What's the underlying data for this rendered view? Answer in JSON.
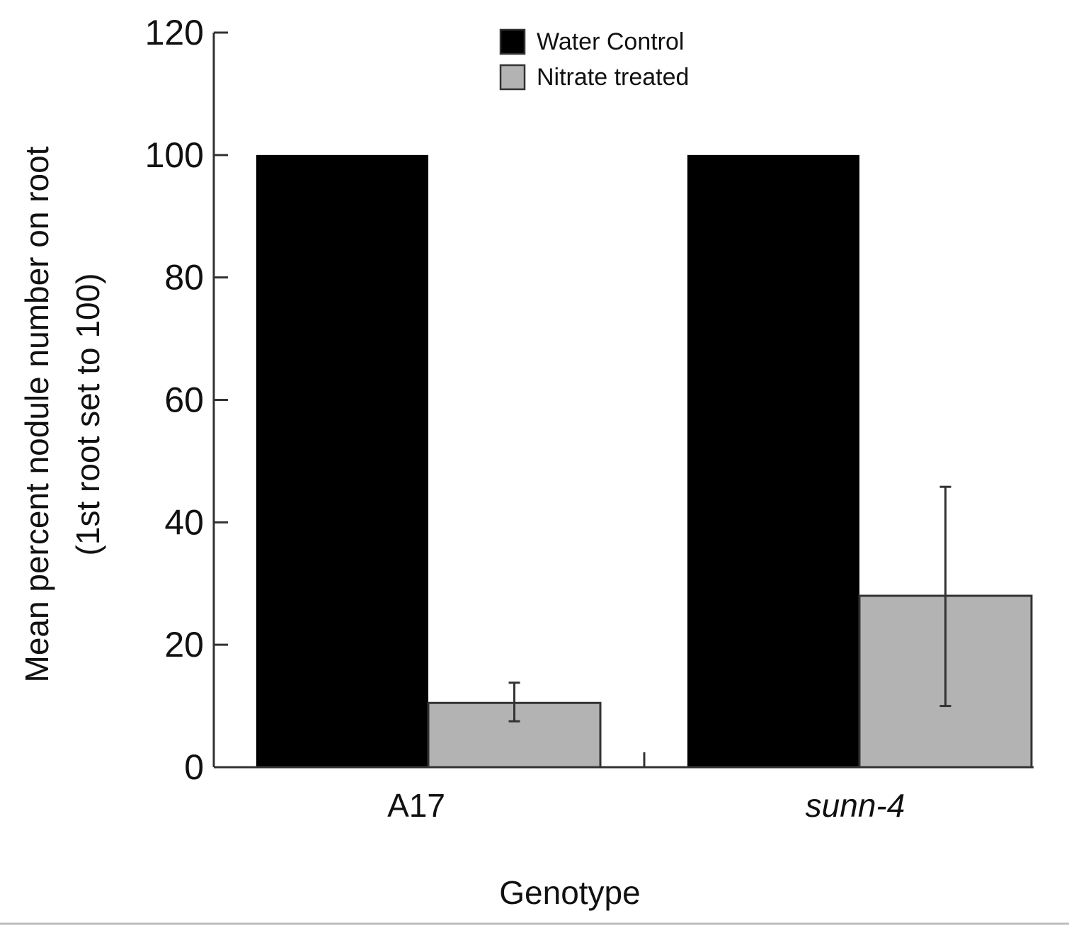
{
  "chart_data": {
    "type": "bar",
    "categories": [
      "A17",
      "sunn-4"
    ],
    "category_styles": [
      "normal",
      "italic"
    ],
    "series": [
      {
        "name": "Water Control",
        "color": "#000000",
        "values": [
          100,
          100
        ],
        "errors": [
          null,
          null
        ]
      },
      {
        "name": "Nitrate treated",
        "color": "#b3b3b3",
        "values": [
          10.5,
          28
        ],
        "errors": [
          [
            7.5,
            13.8
          ],
          [
            10,
            45.8
          ]
        ]
      }
    ],
    "title": "",
    "xlabel": "Genotype",
    "ylabel_lines": [
      "Mean percent nodule number on root",
      "(1st root set to 100)"
    ],
    "ylim": [
      0,
      120
    ],
    "yticks": [
      0,
      20,
      40,
      60,
      80,
      100,
      120
    ],
    "grid": false,
    "legend_position": "top-center"
  }
}
